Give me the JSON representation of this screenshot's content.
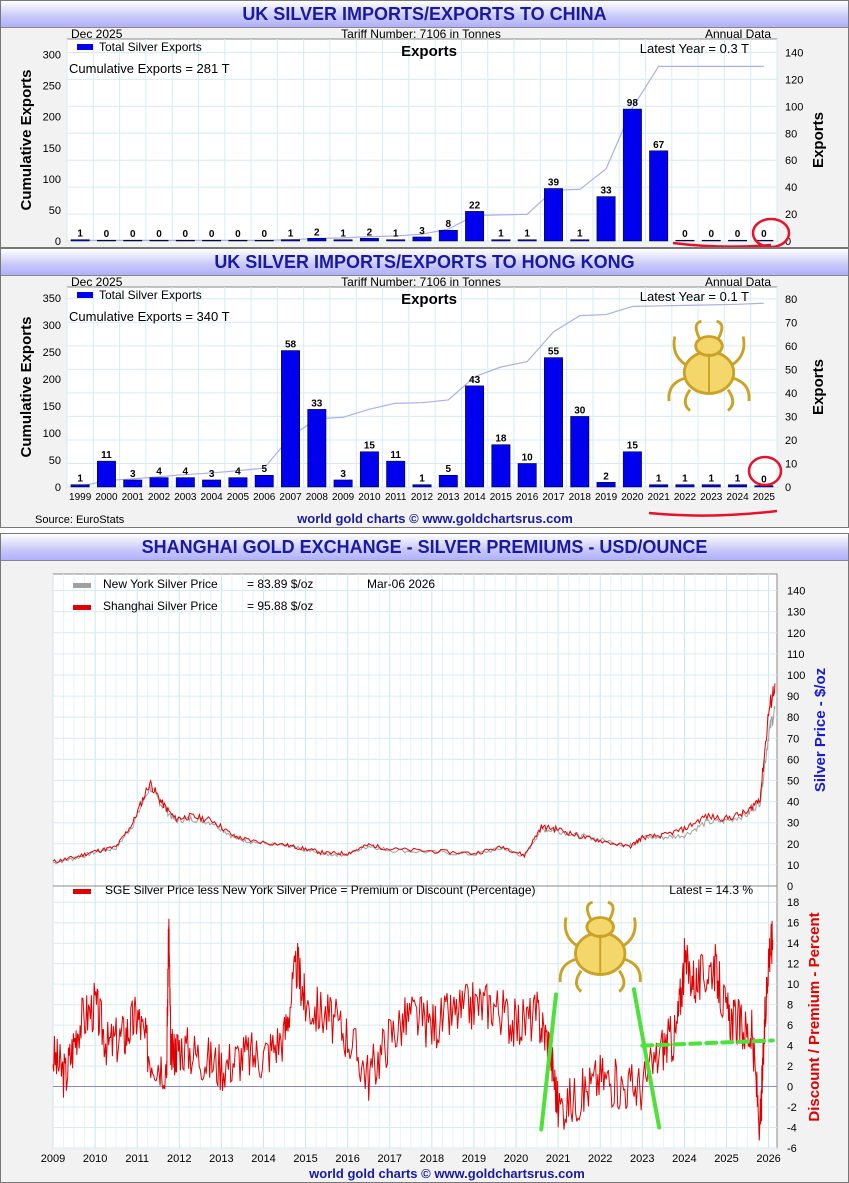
{
  "panel1": {
    "title": "UK SILVER IMPORTS/EXPORTS TO CHINA",
    "date": "Dec  2025",
    "tariff": "Tariff Number: 7106 in Tonnes",
    "annual": "Annual Data",
    "legend": "Total Silver Exports",
    "chart_title": "Exports",
    "latest": "Latest Year = 0.3 T",
    "cumulative": "Cumulative Exports = 281 T",
    "ylabel_left": "Cumulative Exports",
    "ylabel_right": "Exports"
  },
  "panel2": {
    "title": "UK SILVER IMPORTS/EXPORTS TO HONG KONG",
    "date": "Dec  2025",
    "tariff": "Tariff Number: 7106 in Tonnes",
    "annual": "Annual Data",
    "legend": "Total Silver Exports",
    "chart_title": "Exports",
    "latest": "Latest Year = 0.1 T",
    "cumulative": "Cumulative Exports = 340 T",
    "ylabel_left": "Cumulative Exports",
    "ylabel_right": "Exports",
    "source": "Source: EuroStats",
    "footer": "world gold charts © www.goldchartsrus.com"
  },
  "panel3": {
    "title": "SHANGHAI GOLD EXCHANGE - SILVER PREMIUMS - USD/OUNCE",
    "ny_label": "New York Silver Price",
    "ny_value": "= 83.89 $/oz",
    "date": "Mar-06  2026",
    "sh_label": "Shanghai Silver Price",
    "sh_value": "= 95.88 $/oz",
    "ylabel_top": "Silver Price - $/oz",
    "prem_label": "SGE Silver Price less New York Silver Price = Premium or Discount (Percentage)",
    "prem_latest": "Latest = 14.3 %",
    "ylabel_bottom": "Discount / Premium - Percent",
    "footer": "world gold charts © www.goldchartsrus.com"
  },
  "colors": {
    "bar": "#0000ee",
    "cum_line": "#aab0e8",
    "ny": "#a0a0a0",
    "sh": "#e00000",
    "annot": "#e8102a",
    "green": "#4de13a",
    "title_text": "#1a1aa0"
  },
  "icons": [
    "scarab-beetle-logo"
  ],
  "chart_data": [
    {
      "type": "bar",
      "title": "Exports",
      "ylabel": "Exports",
      "ylabel_left": "Cumulative Exports",
      "categories": [
        "1999",
        "2000",
        "2001",
        "2002",
        "2003",
        "2004",
        "2005",
        "2006",
        "2007",
        "2008",
        "2009",
        "2010",
        "2011",
        "2012",
        "2013",
        "2014",
        "2015",
        "2016",
        "2017",
        "2018",
        "2019",
        "2020",
        "2021",
        "2022",
        "2023",
        "2024",
        "2025"
      ],
      "values": [
        1,
        0,
        0,
        0,
        0,
        0,
        0,
        0,
        1,
        2,
        1,
        2,
        1,
        3,
        8,
        22,
        1,
        1,
        39,
        1,
        33,
        98,
        67,
        0,
        0,
        0,
        0
      ],
      "bar_labels": [
        "1",
        "0",
        "0",
        "0",
        "0",
        "0",
        "0",
        "0",
        "1",
        "2",
        "1",
        "2",
        "1",
        "3",
        "8",
        "22",
        "1",
        "1",
        "39",
        "1",
        "33",
        "98",
        "67",
        "0",
        "0",
        "0",
        "0"
      ],
      "cumulative": [
        1,
        1,
        1,
        1,
        1,
        1,
        1,
        1,
        2,
        4,
        5,
        7,
        8,
        11,
        19,
        41,
        42,
        43,
        82,
        83,
        116,
        214,
        281,
        281,
        281,
        281,
        281
      ],
      "ylim_right": [
        0,
        150
      ],
      "ylim_left": [
        0,
        325
      ],
      "yticks_right": [
        0,
        20,
        40,
        60,
        80,
        100,
        120,
        140
      ],
      "yticks_left": [
        0,
        50,
        100,
        150,
        200,
        250,
        300
      ]
    },
    {
      "type": "bar",
      "title": "Exports",
      "ylabel": "Exports",
      "ylabel_left": "Cumulative Exports",
      "categories": [
        "1999",
        "2000",
        "2001",
        "2002",
        "2003",
        "2004",
        "2005",
        "2006",
        "2007",
        "2008",
        "2009",
        "2010",
        "2011",
        "2012",
        "2013",
        "2014",
        "2015",
        "2016",
        "2017",
        "2018",
        "2019",
        "2020",
        "2021",
        "2022",
        "2023",
        "2024",
        "2025"
      ],
      "values": [
        1,
        11,
        3,
        4,
        4,
        3,
        4,
        5,
        58,
        33,
        3,
        15,
        11,
        1,
        5,
        43,
        18,
        10,
        55,
        30,
        2,
        15,
        1,
        1,
        1,
        1,
        0
      ],
      "bar_labels": [
        "1",
        "11",
        "3",
        "4",
        "4",
        "3",
        "4",
        "5",
        "58",
        "33",
        "3",
        "15",
        "11",
        "1",
        "5",
        "43",
        "18",
        "10",
        "55",
        "30",
        "2",
        "15",
        "1",
        "1",
        "1",
        "1",
        "0"
      ],
      "cumulative": [
        1,
        12,
        15,
        19,
        23,
        26,
        30,
        35,
        93,
        126,
        129,
        144,
        155,
        156,
        161,
        204,
        222,
        232,
        287,
        317,
        319,
        334,
        335,
        336,
        337,
        338,
        340
      ],
      "ylim_right": [
        0,
        85
      ],
      "ylim_left": [
        0,
        370
      ],
      "yticks_right": [
        0,
        10,
        20,
        30,
        40,
        50,
        60,
        70,
        80
      ],
      "yticks_left": [
        0,
        50,
        100,
        150,
        200,
        250,
        300,
        350
      ]
    },
    {
      "type": "line",
      "title": "SHANGHAI GOLD EXCHANGE - SILVER PREMIUMS - USD/OUNCE",
      "ylabel": "Silver Price - $/oz",
      "x_range": [
        2009,
        2026.2
      ],
      "ylim": [
        0,
        145
      ],
      "yticks": [
        0,
        10,
        20,
        30,
        40,
        50,
        60,
        70,
        80,
        90,
        100,
        110,
        120,
        130,
        140
      ],
      "series": [
        {
          "name": "New York Silver Price",
          "x": [
            2009,
            2009.5,
            2010,
            2010.5,
            2010.9,
            2011.3,
            2011.6,
            2011.9,
            2012.3,
            2012.8,
            2013.3,
            2013.7,
            2014.5,
            2015,
            2015.5,
            2016,
            2016.5,
            2017,
            2018,
            2019,
            2019.7,
            2020.2,
            2020.6,
            2021,
            2021.5,
            2022,
            2022.7,
            2023,
            2023.5,
            2024,
            2024.5,
            2025,
            2025.5,
            2025.8,
            2026.0,
            2026.15
          ],
          "values": [
            11,
            13,
            16,
            18,
            29,
            47,
            38,
            31,
            32,
            30,
            23,
            21,
            19,
            17,
            15,
            15,
            19,
            17,
            16,
            15,
            18,
            14,
            27,
            26,
            24,
            22,
            19,
            23,
            23,
            24,
            30,
            31,
            34,
            40,
            72,
            84
          ]
        },
        {
          "name": "Shanghai Silver Price",
          "x": [
            2009,
            2009.5,
            2010,
            2010.5,
            2010.9,
            2011.3,
            2011.6,
            2011.9,
            2012.3,
            2012.8,
            2013.3,
            2013.7,
            2014.5,
            2015,
            2015.5,
            2016,
            2016.5,
            2017,
            2018,
            2019,
            2019.7,
            2020.2,
            2020.6,
            2021,
            2021.5,
            2022,
            2022.7,
            2023,
            2023.5,
            2024,
            2024.5,
            2025,
            2025.5,
            2025.8,
            2026.0,
            2026.15
          ],
          "values": [
            11.5,
            13.5,
            16.5,
            18.5,
            30,
            49,
            39,
            32,
            33,
            31,
            23.5,
            21.5,
            19.5,
            17.5,
            15.5,
            15.5,
            19.5,
            17.5,
            16.5,
            15.5,
            18.5,
            14.5,
            28,
            27,
            23.5,
            21.5,
            18.5,
            23,
            24,
            27,
            33,
            32,
            35,
            42,
            82,
            96
          ]
        }
      ]
    },
    {
      "type": "line",
      "title": "SGE Silver Price less New York Silver Price = Premium or Discount (Percentage)",
      "ylabel": "Discount / Premium - Percent",
      "x_range": [
        2009,
        2026.2
      ],
      "ylim": [
        -6,
        19
      ],
      "yticks": [
        -6,
        -4,
        -2,
        0,
        2,
        4,
        6,
        8,
        10,
        12,
        14,
        16,
        18
      ],
      "xticks": [
        "2009",
        "2010",
        "2011",
        "2012",
        "2013",
        "2014",
        "2015",
        "2016",
        "2017",
        "2018",
        "2019",
        "2020",
        "2021",
        "2022",
        "2023",
        "2024",
        "2025",
        "2026"
      ],
      "series": [
        {
          "name": "SGE Silver Price less New York Silver Price = Premium or Discount (Percentage)",
          "x": [
            2009,
            2009.3,
            2009.6,
            2010,
            2010.3,
            2010.7,
            2011,
            2011.3,
            2011.7,
            2011.75,
            2011.8,
            2012,
            2012.5,
            2013,
            2013.5,
            2014,
            2014.5,
            2014.8,
            2015,
            2015.5,
            2016,
            2016.5,
            2017,
            2017.5,
            2018,
            2018.5,
            2019,
            2019.5,
            2020,
            2020.5,
            2020.8,
            2021,
            2021.5,
            2022,
            2022.5,
            2023,
            2023.5,
            2023.8,
            2024,
            2024.3,
            2024.7,
            2025,
            2025.3,
            2025.6,
            2025.8,
            2025.9,
            2026,
            2026.1
          ],
          "values": [
            3,
            1,
            6,
            8,
            4,
            5,
            7,
            3,
            2,
            16,
            3,
            4,
            3,
            2,
            3,
            3,
            5,
            12,
            8,
            7,
            5,
            1,
            5,
            7,
            6,
            7,
            8,
            8,
            6,
            7,
            4,
            -2,
            -1,
            1,
            0,
            0,
            4,
            5,
            12,
            10,
            12,
            7,
            6,
            5,
            -4,
            5,
            13,
            14.3
          ]
        }
      ]
    }
  ]
}
